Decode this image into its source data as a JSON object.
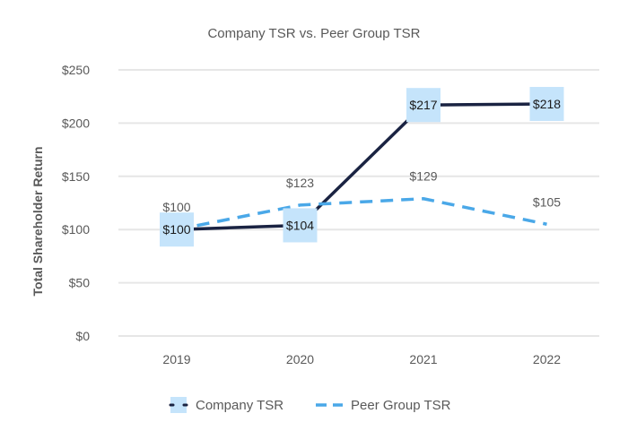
{
  "chart_data": {
    "type": "line",
    "title": "Company TSR vs. Peer Group TSR",
    "xlabel": "",
    "ylabel": "Total Shareholder Return",
    "categories": [
      "2019",
      "2020",
      "2021",
      "2022"
    ],
    "ylim": [
      0,
      250
    ],
    "yticks": [
      0,
      50,
      100,
      150,
      200,
      250
    ],
    "ytick_labels": [
      "$0",
      "$50",
      "$100",
      "$150",
      "$200",
      "$250"
    ],
    "grid": true,
    "legend_position": "bottom",
    "series": [
      {
        "name": "Company TSR",
        "values": [
          100,
          104,
          217,
          218
        ],
        "labels": [
          "$100",
          "$104",
          "$217",
          "$218"
        ],
        "color": "#1a2342",
        "label_bg": "#c5e4fb",
        "line_style": "solid"
      },
      {
        "name": "Peer Group TSR",
        "values": [
          100,
          123,
          129,
          105
        ],
        "labels": [
          "$100",
          "$123",
          "$129",
          "$105"
        ],
        "color": "#4aa8e8",
        "line_style": "dashed"
      }
    ],
    "colors": {
      "grid": "#e6e6e6",
      "axis_text": "#595959",
      "label_text": "#1a1a1a"
    }
  }
}
